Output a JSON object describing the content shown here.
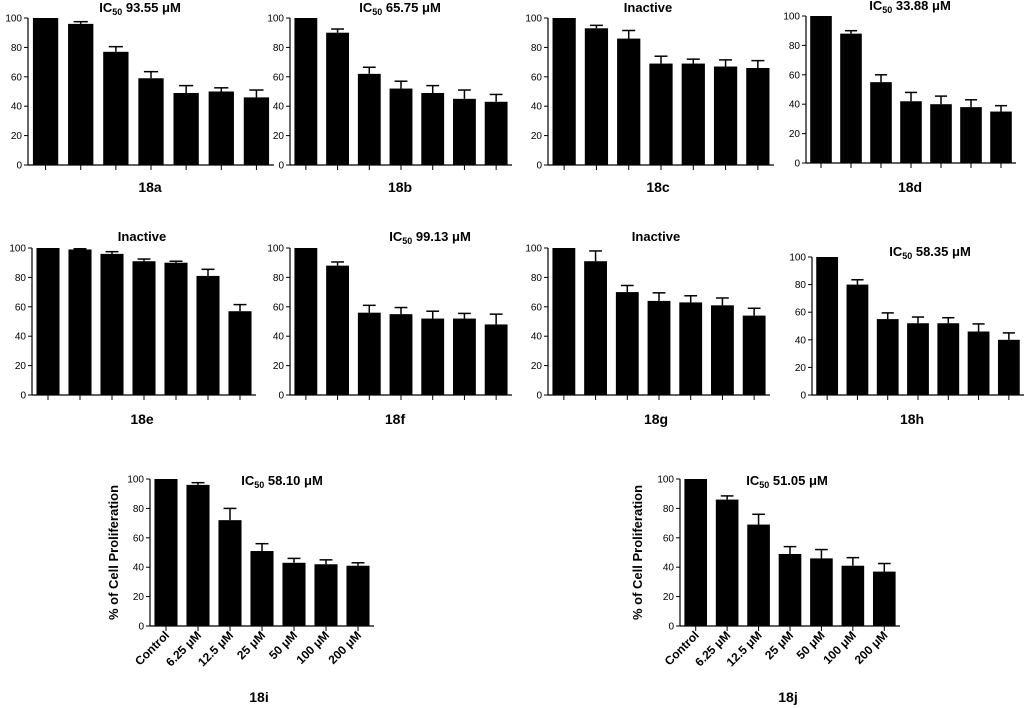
{
  "colors": {
    "bar": "#000000",
    "axis": "#000000",
    "background": "#ffffff"
  },
  "shared": {
    "ylabel": "% of Cell Proliferation",
    "categories": [
      "Control",
      "6.25 μM",
      "12.5 μM",
      "25 μM",
      "50 μM",
      "100 μM",
      "200 μM"
    ],
    "ylim": [
      0,
      100
    ],
    "yticks": [
      0,
      20,
      40,
      60,
      80,
      100
    ]
  },
  "chart_data": [
    {
      "type": "bar",
      "label": "18a",
      "title_main": "IC",
      "title_sub": "50",
      "title_rest": " 93.55 μM",
      "values": [
        100,
        96,
        77,
        59,
        49,
        50,
        46
      ],
      "errors": [
        0,
        1.5,
        3.5,
        4.5,
        5,
        2.5,
        5
      ]
    },
    {
      "type": "bar",
      "label": "18b",
      "title_main": "IC",
      "title_sub": "50",
      "title_rest": " 65.75 μM",
      "values": [
        100,
        90,
        62,
        52,
        49,
        45,
        43
      ],
      "errors": [
        0,
        2.5,
        4.5,
        5,
        5,
        6,
        5
      ]
    },
    {
      "type": "bar",
      "label": "18c",
      "title_main": "Inactive",
      "title_sub": "",
      "title_rest": "",
      "values": [
        100,
        93,
        86,
        69,
        69,
        67,
        66
      ],
      "errors": [
        0,
        2,
        5.5,
        5,
        3,
        4.5,
        5
      ]
    },
    {
      "type": "bar",
      "label": "18d",
      "title_main": "IC",
      "title_sub": "50",
      "title_rest": " 33.88 μM",
      "values": [
        100,
        88,
        55,
        42,
        40,
        38,
        35
      ],
      "errors": [
        0,
        2,
        5,
        6,
        5.5,
        5,
        4
      ]
    },
    {
      "type": "bar",
      "label": "18e",
      "title_main": "Inactive",
      "title_sub": "",
      "title_rest": "",
      "values": [
        100,
        99,
        96,
        91,
        90,
        81,
        57
      ],
      "errors": [
        0,
        0.5,
        1.5,
        1.5,
        1,
        4.5,
        4.5
      ]
    },
    {
      "type": "bar",
      "label": "18f",
      "title_main": "IC",
      "title_sub": "50",
      "title_rest": " 99.13 μM",
      "values": [
        100,
        88,
        56,
        55,
        52,
        52,
        48
      ],
      "errors": [
        0,
        2.5,
        5,
        4.5,
        5,
        3.5,
        7
      ]
    },
    {
      "type": "bar",
      "label": "18g",
      "title_main": "Inactive",
      "title_sub": "",
      "title_rest": "",
      "values": [
        100,
        91,
        70,
        64,
        63,
        61,
        54
      ],
      "errors": [
        0,
        7,
        4.5,
        5.5,
        4.5,
        5,
        5
      ]
    },
    {
      "type": "bar",
      "label": "18h",
      "title_main": "IC",
      "title_sub": "50",
      "title_rest": " 58.35 μM",
      "values": [
        100,
        80,
        55,
        52,
        52,
        46,
        40
      ],
      "errors": [
        0,
        3.5,
        4.5,
        4.5,
        4,
        5.5,
        5
      ]
    },
    {
      "type": "bar",
      "label": "18i",
      "title_main": "IC",
      "title_sub": "50",
      "title_rest": " 58.10 μM",
      "values": [
        100,
        96,
        72,
        51,
        43,
        42,
        41
      ],
      "errors": [
        0,
        1.5,
        8,
        5,
        3,
        3,
        2
      ]
    },
    {
      "type": "bar",
      "label": "18j",
      "title_main": "IC",
      "title_sub": "50",
      "title_rest": " 51.05 μM",
      "values": [
        100,
        86,
        69,
        49,
        46,
        41,
        37
      ],
      "errors": [
        0,
        2.5,
        7,
        5,
        6,
        5.5,
        5.5
      ]
    }
  ]
}
